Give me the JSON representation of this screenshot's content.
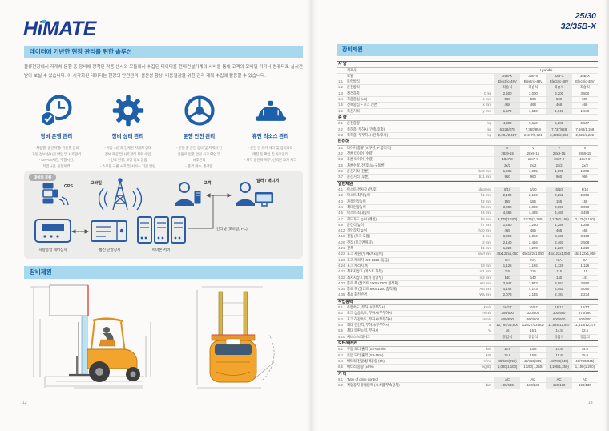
{
  "page_left": {
    "logo": "HiMATE",
    "banner": "데이터에 기반한 현장 관리를 위한 솔루션",
    "intro": "물류현장에서 지게차 운행 중 장비에 장착된 각종 센서와 모듈에서 수집된 데이터를 현대건설기계의 서버를 통해 고객의 모바일 기기나 컴퓨터로 실시간 받아 보실 수 있습니다. 이 시각화된 데이터는 현장의 안전관리, 생산성 향상, 비용절감을 위한 관리 계획 수립에 활용할 수 있습니다.",
    "features": [
      {
        "title": "장비 운행 관리",
        "desc": "* 차량별/ 운전자별/ 기간별 장비\n가동 정보 실시간 확인 및 사후관리\n- Key-on시간, 주행시간,\n작업시간, 운행이력"
      },
      {
        "title": "장비 상태 관리",
        "desc": "* 가동 시간과 연계된 지게차 상태\n정보 제공 및 사후관리 계획 수립\n- 연료 잔량, 고장 정보 알림\n- 소모품 교환 시기 및 서비스 기간 알림"
      },
      {
        "title": "운행 안전 관리",
        "desc": "* 운행 중 안전 장비 및 지게차 간\n충돌로 인한 안전 사고 확인 및\n사후관리\n- 충격 횟수, 충격량"
      },
      {
        "title": "휴먼 리소스 관리",
        "desc": "* 운전 전 자가 체크 및 장비와의\n매칭 등 확인 및 사후관리\n- 자격 운전자 여부, 선택된 자가 체크"
      }
    ],
    "dataflow": {
      "tab": "데이터 흐름",
      "gps": "GPS",
      "mobile": "모바일",
      "customer": "고객",
      "dealer": "딜러 / 매니저",
      "vcu": "차량종합 제어장치",
      "terminal": "통신 단말장치",
      "server": "아마존 서버",
      "internet": "인터넷 (모바일, PC)"
    },
    "section_title": "장비제원",
    "page_number": "12"
  },
  "page_right": {
    "model_line1": "25/30",
    "model_line2": "32/35B-X",
    "section_title": "장비제원",
    "page_number": "13",
    "table": {
      "sections": [
        {
          "title": "사 양",
          "rows": [
            {
              "no": "",
              "label": "제조사",
              "unit": "",
              "span_value": "Hyundai"
            },
            {
              "no": "",
              "label": "모델",
              "unit": "",
              "values": [
                "25B-X",
                "30B-X",
                "32B-X",
                "35B-X"
              ]
            },
            {
              "no": "1.1",
              "label": "동력방식",
              "unit": "",
              "values": [
                "Electric-48V",
                "Electric-48V",
                "Electric-48V",
                "Electric-48V"
              ]
            },
            {
              "no": "1.2",
              "label": "운전방식",
              "unit": "",
              "values": [
                "좌승식",
                "좌승식",
                "좌승식",
                "좌승식"
              ]
            },
            {
              "no": "1.3",
              "label": "정격하중",
              "unit": "Q kg",
              "values": [
                "2,500",
                "3,000",
                "3,200",
                "3,500"
              ]
            },
            {
              "no": "1.4",
              "label": "하중중심 (LC)",
              "unit": "c mm",
              "values": [
                "500",
                "500",
                "500",
                "500"
              ]
            },
            {
              "no": "1.5",
              "label": "전축중심 ~ 포크 전면",
              "unit": "x mm",
              "values": [
                "468",
                "468",
                "468",
                "468"
              ]
            },
            {
              "no": "1.6",
              "label": "축간거리",
              "unit": "y mm",
              "values": [
                "1,572",
                "1,640",
                "1,640",
                "1,640"
              ]
            }
          ]
        },
        {
          "title": "중 량",
          "rows": [
            {
              "no": "2.1",
              "label": "운전중량",
              "unit": "kg",
              "values": [
                "4,300",
                "5,110",
                "5,280",
                "5,507"
              ]
            },
            {
              "no": "2.2",
              "label": "축하중, 부하시 (전축/후축)",
              "unit": "kg",
              "values": [
                "6,228/878",
                "7,350/854",
                "7,737/928",
                "7,948/1,159"
              ]
            },
            {
              "no": "2.3",
              "label": "축하중, 무부하시 (전축/후축)",
              "unit": "kg",
              "values": [
                "2,284/2,417",
                "2,417/2,721",
                "2,425/2,884",
                "2,325/3,222"
              ]
            }
          ]
        },
        {
          "title": "타이어",
          "rows": [
            {
              "no": "3.1",
              "label": "타이어 종류 (V:쿠션, P:공기식)",
              "unit": "",
              "values": [
                "V",
                "V",
                "V",
                "V"
              ]
            },
            {
              "no": "3.2",
              "label": "전륜 타이어 (수량)",
              "unit": "",
              "values": [
                "28x9-15",
                "28x9-15",
                "28x9-15",
                "28x9-15"
              ]
            },
            {
              "no": "3.3",
              "label": "후륜 타이어 (수량)",
              "unit": "",
              "values": [
                "18x7-8",
                "18x7-8",
                "18x7-8",
                "18x7-8"
              ]
            },
            {
              "no": "3.5",
              "label": "차륜수량, 전/후 (x=구동륜)",
              "unit": "",
              "values": [
                "2x/2",
                "2x/2",
                "2x/2",
                "2x/2"
              ]
            },
            {
              "no": "3.6",
              "label": "윤간거리 (전륜)",
              "unit": "b10 mm",
              "values": [
                "1,005",
                "1,005",
                "1,005",
                "1,005"
              ]
            },
            {
              "no": "3.7",
              "label": "윤간거리 (후륜)",
              "unit": "b11 mm",
              "values": [
                "960",
                "960",
                "960",
                "960"
              ]
            }
          ]
        },
        {
          "title": "일반제원",
          "rows": [
            {
              "no": "4.1",
              "label": "마스트 경사각 (전/후)",
              "unit": "degrees",
              "values": [
                "6/10",
                "6/10",
                "6/10",
                "6/10"
              ]
            },
            {
              "no": "4.2",
              "label": "마스트 최저높이",
              "unit": "h1 mm",
              "values": [
                "2,190",
                "2,190",
                "2,252",
                "2,252"
              ]
            },
            {
              "no": "4.3",
              "label": "자유인상높이",
              "unit": "h2 mm",
              "values": [
                "155",
                "155",
                "155",
                "155"
              ]
            },
            {
              "no": "4.4",
              "label": "최대인상높이",
              "unit": "h3 mm",
              "values": [
                "3,000",
                "3,000",
                "3,000",
                "3,000"
              ]
            },
            {
              "no": "4.5",
              "label": "마스트 최대높이",
              "unit": "h4 mm",
              "values": [
                "4,485",
                "4,485",
                "4,485",
                "4,485"
              ]
            },
            {
              "no": "4.7",
              "label": "헤드가드 높이 (캐빈)",
              "unit": "h6 mm",
              "values": [
                "2,175(2,190)",
                "2,175(2,190)",
                "2,175(2,190)",
                "2,175(2,190)"
              ]
            },
            {
              "no": "4.8",
              "label": "운전석 높이",
              "unit": "h7 mm",
              "values": [
                "1,280",
                "1,280",
                "1,288",
                "1,288"
              ]
            },
            {
              "no": "4.12",
              "label": "견인장치 높이",
              "unit": "h10 mm",
              "values": [
                "465",
                "465",
                "465",
                "465"
              ]
            },
            {
              "no": "4.19",
              "label": "전장 (포크 포함)",
              "unit": "l1 mm",
              "values": [
                "3,099",
                "3,066",
                "3,138",
                "3,158"
              ]
            },
            {
              "no": "4.20",
              "label": "전장 (포크면까지)",
              "unit": "l2 mm",
              "values": [
                "2,140",
                "2,416",
                "2,460",
                "2,508"
              ]
            },
            {
              "no": "4.21",
              "label": "전폭",
              "unit": "b1 mm",
              "values": [
                "1,229",
                "1,229",
                "1,229",
                "1,229"
              ]
            },
            {
              "no": "4.22",
              "label": "포크 제원 (두께x폭x길이)",
              "unit": "s/e/l mm",
              "values": [
                "45x122x1,050",
                "45x122x1,050",
                "45x122x1,050",
                "45x122x1,050"
              ]
            },
            {
              "no": "4.23",
              "label": "포크 캐리지 ISO 2328 (등급)",
              "unit": "",
              "values": [
                "IIIA",
                "IIIA",
                "IIIA",
                "IIIA"
              ]
            },
            {
              "no": "4.24",
              "label": "포크 캐리지 폭",
              "unit": "b3 mm",
              "values": [
                "1,126",
                "1,126",
                "1,126",
                "1,126"
              ]
            },
            {
              "no": "4.31",
              "label": "최저지상고 (마스트 하부)",
              "unit": "m1 mm",
              "values": [
                "115",
                "115",
                "115",
                "115"
              ]
            },
            {
              "no": "4.32",
              "label": "최저지상고 (축거 중앙부)",
              "unit": "m2 mm",
              "values": [
                "140",
                "140",
                "140",
                "141"
              ]
            },
            {
              "no": "4.33",
              "label": "통로 폭 (팔레트 1000x1200 횡적재)",
              "unit": "Ast mm",
              "values": [
                "3,942",
                "3,973",
                "3,952",
                "3,990"
              ]
            },
            {
              "no": "4.34",
              "label": "통로 폭 (팔레트 800x1200 종적재)",
              "unit": "Ast mm",
              "values": [
                "4,142",
                "4,173",
                "4,052",
                "4,090"
              ]
            },
            {
              "no": "4.35",
              "label": "최소 회전반경",
              "unit": "Wa mm",
              "values": [
                "2,078",
                "2,145",
                "2,184",
                "2,234"
              ]
            }
          ]
        },
        {
          "title": "작업능력",
          "rows": [
            {
              "no": "5.1",
              "label": "주행속도, 부하시/무부하시",
              "unit": "km/h",
              "values": [
                "16/17",
                "16/17",
                "16/17",
                "16/17"
              ]
            },
            {
              "no": "5.2",
              "label": "포크 상승속도, 부하시/무부하시",
              "unit": "mm/s",
              "values": [
                "300/500",
                "320/600",
                "300/580",
                "270/590"
              ]
            },
            {
              "no": "5.3",
              "label": "포크 하강속도, 부하시/무부하시",
              "unit": "mm/s",
              "values": [
                "600/600",
                "600/600",
                "600/600",
                "600/600"
              ]
            },
            {
              "no": "5.4",
              "label": "최대 견인력, 부하시/무부하시",
              "unit": "N",
              "values": [
                "12,754/13,800",
                "11,627/12,502",
                "11,548/12,547",
                "11,315/12,376"
              ]
            },
            {
              "no": "5.5",
              "label": "최대 등판능력, 부하시",
              "unit": "%",
              "values": [
                "16",
                "15.1",
                "14.5",
                "12.5"
              ]
            },
            {
              "no": "5.10",
              "label": "서비스 브레이크",
              "unit": "",
              "values": [
                "유압식",
                "유압식",
                "유압식",
                "유압식"
              ]
            }
          ]
        },
        {
          "title": "모터/배터리",
          "rows": [
            {
              "no": "6.1",
              "label": "구동 모터 출력 (S2-60min)",
              "unit": "kW",
              "values": [
                "14.8",
                "14.8",
                "14.8",
                "14.0"
              ]
            },
            {
              "no": "6.2",
              "label": "유압 모터 출력 (S3-15%)",
              "unit": "kW",
              "values": [
                "15.8",
                "15.8",
                "15.8",
                "15.0"
              ]
            },
            {
              "no": "6.4",
              "label": "배터리 전압/정격용량 (5h)",
              "unit": "V/Ah",
              "values": [
                "48/600(725)",
                "48/780(845)",
                "48/780(845)",
                "48/780(845)"
              ]
            },
            {
              "no": "6.5",
              "label": "배터리 중량 (±5%)",
              "unit": "kg(lb)",
              "values": [
                "1,080(1,100)",
                "1,190(1,250)",
                "1,190(1,250)",
                "1,190(1,250)"
              ]
            }
          ]
        },
        {
          "title": "기 타",
          "rows": [
            {
              "no": "8.1",
              "label": "Type of drive control",
              "unit": "",
              "values": [
                "AC",
                "AC",
                "AC",
                "AC"
              ]
            },
            {
              "no": "8.2",
              "label": "작업장치 유압압력 (시스템/부속장치)",
              "unit": "bar",
              "values": [
                "190/130",
                "190/130",
                "190/130",
                "190/130"
              ]
            }
          ]
        }
      ]
    }
  },
  "colors": {
    "brand_navy": "#1c3d95",
    "band_bg": "#a8d8ee",
    "band_text": "#1563a8",
    "icon_blue": "#1e5fa9",
    "forklift_orange": "#f2a42c",
    "mast_red": "#d84a38",
    "shade_col": "#e9e9e7"
  }
}
